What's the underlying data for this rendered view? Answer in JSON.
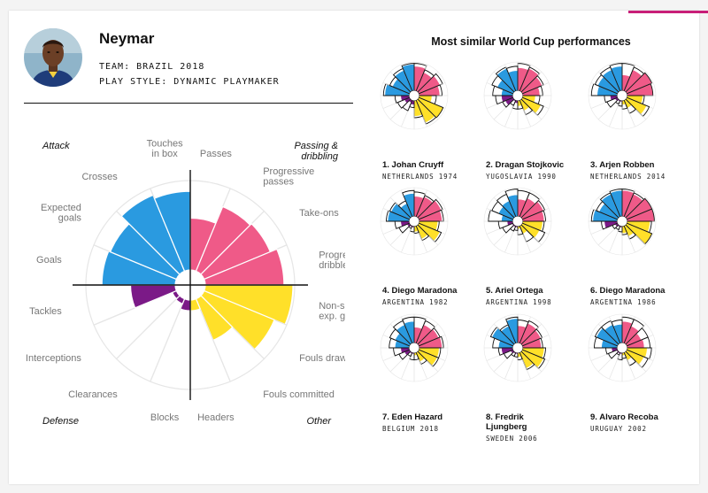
{
  "player": {
    "name": "Neymar",
    "team_label": "TEAM:",
    "team_value": "BRAZIL 2018",
    "style_label": "PLAY STYLE:",
    "style_value": "DYNAMIC PLAYMAKER"
  },
  "colors": {
    "attack": "#2a9ae0",
    "passing": "#ef5a88",
    "other": "#ffe029",
    "defense": "#7b1a87",
    "outline": "#e6e6e6",
    "axis": "#111111",
    "label": "#777777",
    "accent": "#c81e78"
  },
  "similar_title": "Most similar World Cup performances",
  "chart_data": {
    "type": "polar-bar",
    "category_order": [
      "Passes",
      "Progressive passes",
      "Take-ons",
      "Progressive dribbles",
      "Non-shot exp. goals",
      "Fouls drawn",
      "Fouls committed",
      "Headers",
      "Blocks",
      "Clearances",
      "Interceptions",
      "Tackles",
      "Goals",
      "Expected goals",
      "Crosses",
      "Touches in box"
    ],
    "category_labels": [
      "Passes",
      "Progressive\npasses",
      "Take-ons",
      "Progressive\ndribbles",
      "Non-shot\nexp. goals",
      "Fouls drawn",
      "Fouls committed",
      "Headers",
      "Blocks",
      "Clearances",
      "Interceptions",
      "Tackles",
      "Goals",
      "Expected\ngoals",
      "Crosses",
      "Touches\nin box"
    ],
    "category_groups": [
      "passing",
      "passing",
      "passing",
      "passing",
      "other",
      "other",
      "other",
      "other",
      "defense",
      "defense",
      "defense",
      "defense",
      "attack",
      "attack",
      "attack",
      "attack"
    ],
    "quadrant_labels": [
      {
        "text": "Attack",
        "pos": "top-left"
      },
      {
        "text": "Passing &\ndribbling",
        "pos": "top-right"
      },
      {
        "text": "Defense",
        "pos": "bottom-left"
      },
      {
        "text": "Other",
        "pos": "bottom-right"
      }
    ],
    "value_range": [
      0,
      1
    ],
    "main": {
      "player": "Neymar",
      "values": [
        0.58,
        0.78,
        0.8,
        0.88,
        0.98,
        0.85,
        0.5,
        0.12,
        0.12,
        0.06,
        0.05,
        0.5,
        0.82,
        0.8,
        0.92,
        0.88
      ]
    },
    "similar": [
      {
        "rank_name": "1. Johan Cruyff",
        "country": "NETHERLANDS 1974",
        "values": [
          0.85,
          0.7,
          0.8,
          0.72,
          0.45,
          0.92,
          0.85,
          0.55,
          0.15,
          0.1,
          0.2,
          0.3,
          0.85,
          0.65,
          0.78,
          0.92
        ],
        "outline": [
          0.95,
          0.8,
          0.9,
          0.8,
          0.6,
          0.92,
          0.9,
          0.6,
          0.25,
          0.4,
          0.45,
          0.5,
          0.9,
          0.75,
          0.85,
          0.95
        ]
      },
      {
        "rank_name": "2. Dragan Stojkovic",
        "country": "YUGOSLAVIA 1990",
        "values": [
          0.8,
          0.85,
          0.75,
          0.6,
          0.45,
          0.7,
          0.4,
          0.2,
          0.1,
          0.05,
          0.3,
          0.4,
          0.4,
          0.6,
          0.85,
          0.7
        ],
        "outline": [
          0.95,
          0.9,
          0.8,
          0.7,
          0.6,
          0.8,
          0.55,
          0.3,
          0.3,
          0.2,
          0.4,
          0.6,
          0.7,
          0.8,
          0.9,
          0.85
        ]
      },
      {
        "rank_name": "3. Arjen Robben",
        "country": "NETHERLANDS 2014",
        "values": [
          0.55,
          0.8,
          0.95,
          0.9,
          0.55,
          0.75,
          0.3,
          0.15,
          0.05,
          0.05,
          0.1,
          0.25,
          0.7,
          0.75,
          0.8,
          0.85
        ],
        "outline": [
          0.95,
          0.9,
          0.95,
          0.9,
          0.6,
          0.85,
          0.5,
          0.3,
          0.2,
          0.15,
          0.4,
          0.45,
          0.9,
          0.85,
          0.9,
          0.95
        ]
      },
      {
        "rank_name": "4. Diego Maradona",
        "country": "ARGENTINA 1982",
        "values": [
          0.7,
          0.75,
          0.85,
          0.8,
          0.65,
          0.8,
          0.5,
          0.2,
          0.05,
          0.05,
          0.1,
          0.3,
          0.75,
          0.7,
          0.5,
          0.8
        ],
        "outline": [
          0.85,
          0.8,
          0.9,
          0.85,
          0.7,
          0.85,
          0.55,
          0.25,
          0.2,
          0.1,
          0.4,
          0.5,
          0.8,
          0.75,
          0.6,
          0.9
        ]
      },
      {
        "rank_name": "5. Ariel Ortega",
        "country": "ARGENTINA 1998",
        "values": [
          0.6,
          0.7,
          0.8,
          0.75,
          0.7,
          0.65,
          0.3,
          0.1,
          0.05,
          0.05,
          0.05,
          0.2,
          0.4,
          0.55,
          0.6,
          0.75
        ],
        "outline": [
          0.9,
          0.9,
          0.85,
          0.8,
          0.75,
          0.85,
          0.6,
          0.3,
          0.15,
          0.2,
          0.4,
          0.5,
          0.85,
          0.8,
          0.85,
          0.95
        ]
      },
      {
        "rank_name": "6. Diego Maradona",
        "country": "ARGENTINA 1986",
        "values": [
          0.9,
          0.85,
          0.95,
          0.95,
          0.8,
          0.95,
          0.4,
          0.25,
          0.05,
          0.05,
          0.1,
          0.45,
          0.85,
          0.7,
          0.85,
          0.9
        ],
        "outline": [
          0.95,
          0.9,
          0.95,
          0.95,
          0.85,
          0.95,
          0.5,
          0.3,
          0.2,
          0.15,
          0.2,
          0.55,
          0.9,
          0.8,
          0.9,
          0.95
        ]
      },
      {
        "rank_name": "7. Eden Hazard",
        "country": "BELGIUM 2018",
        "values": [
          0.55,
          0.7,
          0.75,
          0.8,
          0.7,
          0.7,
          0.35,
          0.1,
          0.05,
          0.05,
          0.2,
          0.3,
          0.5,
          0.55,
          0.7,
          0.75
        ],
        "outline": [
          0.9,
          0.85,
          0.8,
          0.85,
          0.75,
          0.75,
          0.45,
          0.25,
          0.25,
          0.15,
          0.4,
          0.55,
          0.7,
          0.75,
          0.85,
          0.9
        ]
      },
      {
        "rank_name": "8. Fredrik\nLjungberg",
        "country": "SWEDEN 2006",
        "values": [
          0.6,
          0.75,
          0.7,
          0.65,
          0.75,
          0.8,
          0.6,
          0.15,
          0.05,
          0.05,
          0.1,
          0.4,
          0.5,
          0.8,
          0.65,
          0.85
        ],
        "outline": [
          0.8,
          0.85,
          0.75,
          0.7,
          0.8,
          0.85,
          0.65,
          0.25,
          0.15,
          0.15,
          0.35,
          0.5,
          0.7,
          0.85,
          0.7,
          0.9
        ]
      },
      {
        "rank_name": "9. Alvaro Recoba",
        "country": "URUGUAY 2002",
        "values": [
          0.75,
          0.65,
          0.55,
          0.6,
          0.7,
          0.65,
          0.3,
          0.1,
          0.05,
          0.05,
          0.05,
          0.2,
          0.55,
          0.8,
          0.7,
          0.65
        ],
        "outline": [
          0.9,
          0.9,
          0.8,
          0.8,
          0.85,
          0.8,
          0.5,
          0.2,
          0.25,
          0.1,
          0.35,
          0.4,
          0.8,
          0.85,
          0.85,
          0.8
        ]
      }
    ]
  }
}
